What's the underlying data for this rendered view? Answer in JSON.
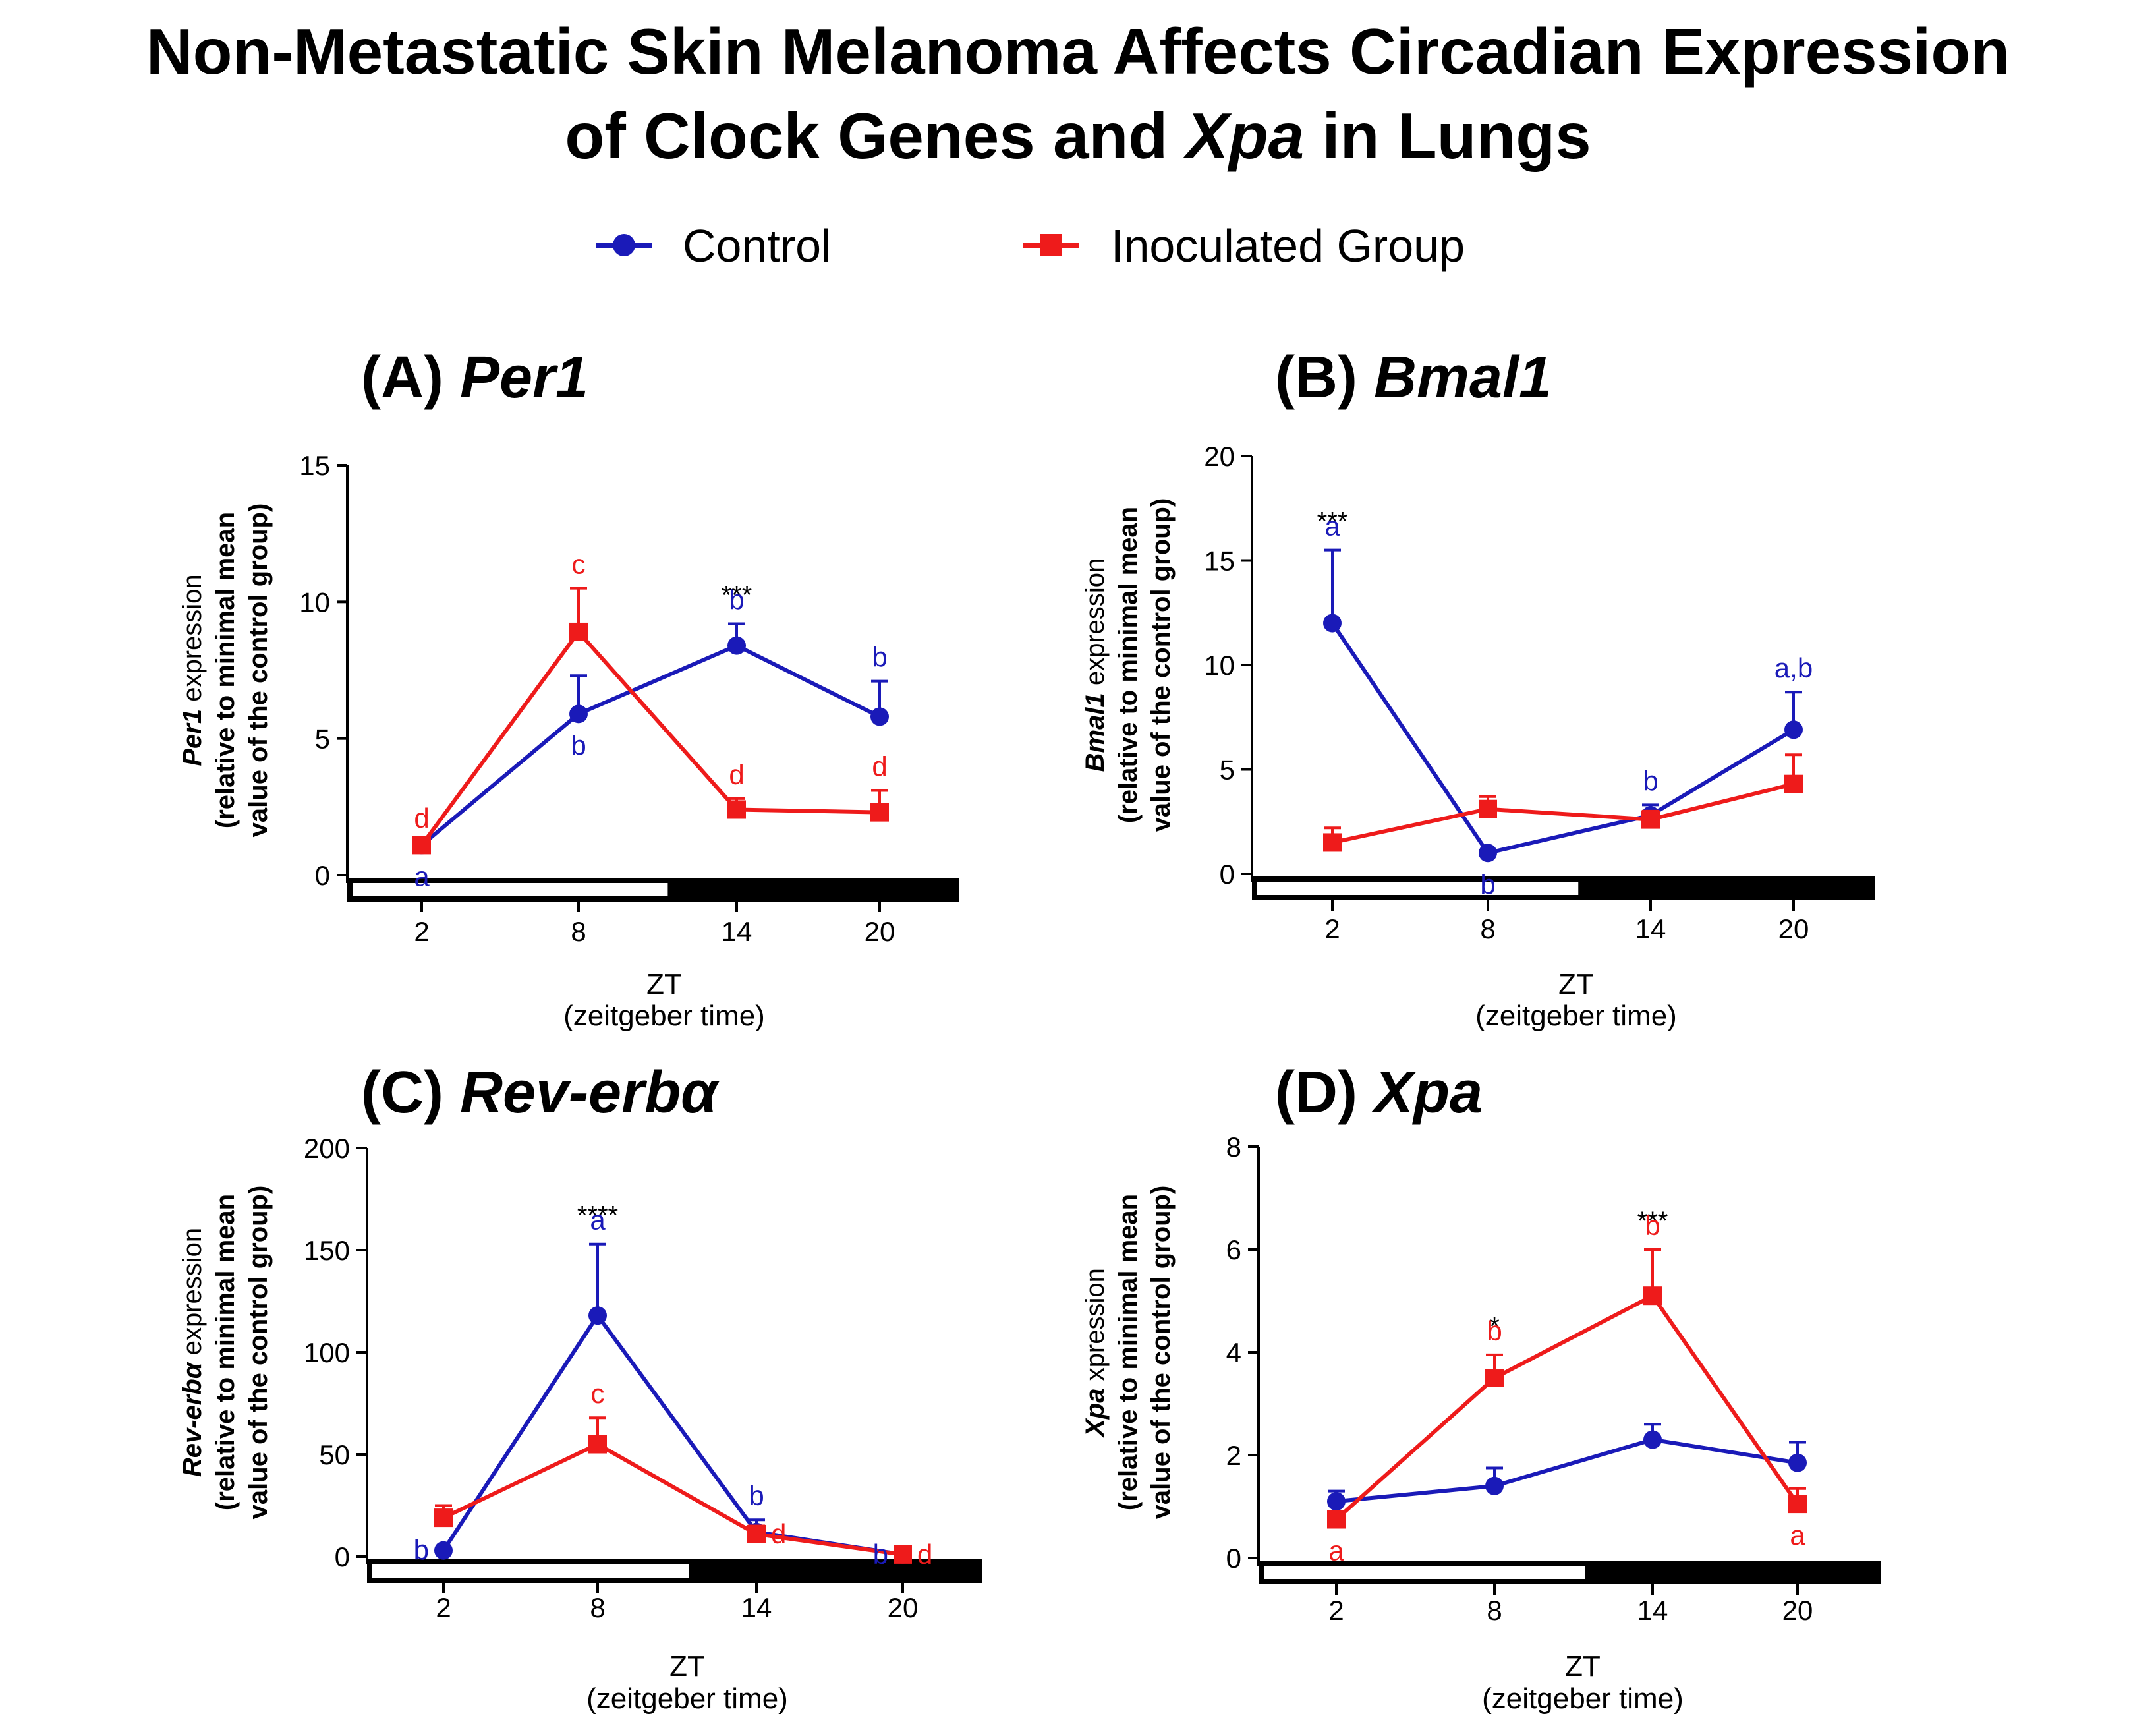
{
  "title_line1": "Non-Metastatic Skin Melanoma Affects Circadian Expression",
  "title_line2_pre": "of Clock Genes and ",
  "title_line2_gene": "Xpa",
  "title_line2_post": " in Lungs",
  "legend": [
    {
      "label": "Control",
      "color": "#1a1ab8",
      "marker": "circle"
    },
    {
      "label": "Inoculated Group",
      "color": "#ee1b1b",
      "marker": "square"
    }
  ],
  "colors": {
    "control": "#1a1ab8",
    "inoculated": "#ee1b1b"
  },
  "chart_data": [
    {
      "type": "line",
      "panel": "(A)",
      "gene": "Per1",
      "categories": [
        "2",
        "8",
        "14",
        "20"
      ],
      "xlabel": "ZT",
      "xsublabel": "(zeitgeber time)",
      "ylabel_gene": "Per1",
      "ylabel_line1": " expression",
      "ylabel_line2": "(relative to minimal mean",
      "ylabel_line3": "value of the control group)",
      "ylim": [
        0,
        15
      ],
      "yticks": [
        0,
        5,
        10,
        15
      ],
      "series": [
        {
          "name": "Control",
          "values": [
            1.1,
            5.9,
            8.4,
            5.8
          ],
          "errors": [
            0.1,
            1.4,
            0.8,
            1.3
          ]
        },
        {
          "name": "Inoculated Group",
          "values": [
            1.1,
            8.9,
            2.4,
            2.3
          ],
          "errors": [
            0.1,
            1.6,
            0.4,
            0.8
          ]
        }
      ],
      "annotations": [
        {
          "text": "a",
          "series": "Control",
          "x": "2",
          "pos": "below"
        },
        {
          "text": "d",
          "series": "Inoculated Group",
          "x": "2",
          "pos": "above"
        },
        {
          "text": "b",
          "series": "Control",
          "x": "8",
          "pos": "below"
        },
        {
          "text": "c",
          "series": "Inoculated Group",
          "x": "8",
          "pos": "above"
        },
        {
          "text": "b",
          "series": "Control",
          "x": "14",
          "pos": "above"
        },
        {
          "text": "d",
          "series": "Inoculated Group",
          "x": "14",
          "pos": "above"
        },
        {
          "text": "***",
          "series": "sig",
          "x": "14",
          "pos": "above"
        },
        {
          "text": "b",
          "series": "Control",
          "x": "20",
          "pos": "above"
        },
        {
          "text": "d",
          "series": "Inoculated Group",
          "x": "20",
          "pos": "above"
        }
      ],
      "light_dark_bar": "light ZT0-12, dark ZT12-24"
    },
    {
      "type": "line",
      "panel": "(B)",
      "gene": "Bmal1",
      "categories": [
        "2",
        "8",
        "14",
        "20"
      ],
      "xlabel": "ZT",
      "xsublabel": "(zeitgeber time)",
      "ylabel_gene": "Bmal1",
      "ylabel_line1": " expression",
      "ylabel_line2": "(relative to minimal mean",
      "ylabel_line3": "value of the control group)",
      "ylim": [
        0,
        20
      ],
      "yticks": [
        0,
        5,
        10,
        15,
        20
      ],
      "series": [
        {
          "name": "Control",
          "values": [
            12.0,
            1.0,
            2.8,
            6.9
          ],
          "errors": [
            3.5,
            0.1,
            0.5,
            1.8
          ]
        },
        {
          "name": "Inoculated Group",
          "values": [
            1.5,
            3.1,
            2.6,
            4.3
          ],
          "errors": [
            0.7,
            0.6,
            0.4,
            1.4
          ]
        }
      ],
      "annotations": [
        {
          "text": "a",
          "series": "Control",
          "x": "2",
          "pos": "above"
        },
        {
          "text": "***",
          "series": "sig",
          "x": "2",
          "pos": "above"
        },
        {
          "text": "b",
          "series": "Control",
          "x": "8",
          "pos": "below"
        },
        {
          "text": "b",
          "series": "Control",
          "x": "14",
          "pos": "above"
        },
        {
          "text": "a,b",
          "series": "Control",
          "x": "20",
          "pos": "above"
        }
      ],
      "light_dark_bar": "light ZT0-12, dark ZT12-24"
    },
    {
      "type": "line",
      "panel": "(C)",
      "gene": "Rev-erbα",
      "categories": [
        "2",
        "8",
        "14",
        "20"
      ],
      "xlabel": "ZT",
      "xsublabel": "(zeitgeber time)",
      "ylabel_gene": "Rev-erbα",
      "ylabel_line1": " expression",
      "ylabel_line2": "(relative to minimal mean",
      "ylabel_line3": "value of the control group)",
      "ylim": [
        0,
        200
      ],
      "yticks": [
        0,
        50,
        100,
        150,
        200
      ],
      "series": [
        {
          "name": "Control",
          "values": [
            3,
            118,
            12,
            1
          ],
          "errors": [
            1,
            35,
            6,
            1
          ]
        },
        {
          "name": "Inoculated Group",
          "values": [
            19,
            55,
            11,
            1
          ],
          "errors": [
            6,
            13,
            4,
            1
          ]
        }
      ],
      "annotations": [
        {
          "text": "b",
          "series": "Control",
          "x": "2",
          "pos": "left"
        },
        {
          "text": "****",
          "series": "sig",
          "x": "8",
          "pos": "above"
        },
        {
          "text": "a",
          "series": "Control",
          "x": "8",
          "pos": "above"
        },
        {
          "text": "c",
          "series": "Inoculated Group",
          "x": "8",
          "pos": "above"
        },
        {
          "text": "b",
          "series": "Control",
          "x": "14",
          "pos": "above"
        },
        {
          "text": "d",
          "series": "Inoculated Group",
          "x": "14",
          "pos": "right"
        },
        {
          "text": "b",
          "series": "Control",
          "x": "20",
          "pos": "left"
        },
        {
          "text": "d",
          "series": "Inoculated Group",
          "x": "20",
          "pos": "right"
        }
      ],
      "light_dark_bar": "light ZT0-12, dark ZT12-24"
    },
    {
      "type": "line",
      "panel": "(D)",
      "gene": "Xpa",
      "categories": [
        "2",
        "8",
        "14",
        "20"
      ],
      "xlabel": "ZT",
      "xsublabel": "(zeitgeber time)",
      "ylabel_gene": "Xpa",
      "ylabel_line1": " xpression",
      "ylabel_line2": "(relative to minimal mean",
      "ylabel_line3": "value of the control group)",
      "ylim": [
        0,
        8
      ],
      "yticks": [
        0,
        2,
        4,
        6,
        8
      ],
      "series": [
        {
          "name": "Control",
          "values": [
            1.1,
            1.4,
            2.3,
            1.85
          ],
          "errors": [
            0.2,
            0.35,
            0.3,
            0.4
          ]
        },
        {
          "name": "Inoculated Group",
          "values": [
            0.75,
            3.5,
            5.1,
            1.05
          ],
          "errors": [
            0.15,
            0.45,
            0.9,
            0.3
          ]
        }
      ],
      "annotations": [
        {
          "text": "a",
          "series": "Inoculated Group",
          "x": "2",
          "pos": "below"
        },
        {
          "text": "*",
          "series": "sig",
          "x": "8",
          "pos": "above"
        },
        {
          "text": "b",
          "series": "Inoculated Group",
          "x": "8",
          "pos": "above"
        },
        {
          "text": "***",
          "series": "sig",
          "x": "14",
          "pos": "above"
        },
        {
          "text": "b",
          "series": "Inoculated Group",
          "x": "14",
          "pos": "above"
        },
        {
          "text": "a",
          "series": "Inoculated Group",
          "x": "20",
          "pos": "below"
        }
      ],
      "light_dark_bar": "light ZT0-12, dark ZT12-24"
    }
  ]
}
